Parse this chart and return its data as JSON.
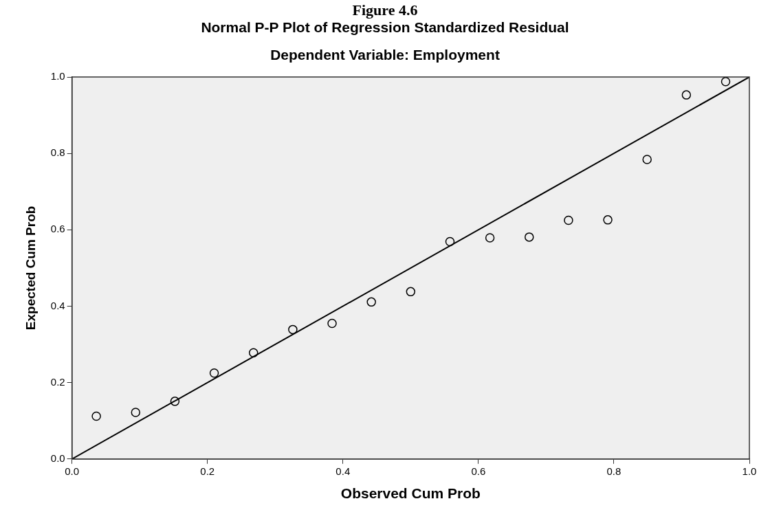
{
  "chart_data": {
    "type": "scatter",
    "title": "Normal P-P Plot of Regression Standardized Residual",
    "subtitle": "Dependent Variable: Employment",
    "annotations": [
      "Figure 4.6"
    ],
    "xlabel": "Observed Cum Prob",
    "ylabel": "Expected Cum Prob",
    "series": [
      {
        "marker": "circle",
        "color": "#000000",
        "x": [
          0.036,
          0.094,
          0.152,
          0.21,
          0.268,
          0.326,
          0.384,
          0.442,
          0.5,
          0.558,
          0.617,
          0.675,
          0.733,
          0.791,
          0.849,
          0.907,
          0.965
        ],
        "values": [
          0.112,
          0.122,
          0.151,
          0.225,
          0.278,
          0.339,
          0.355,
          0.411,
          0.438,
          0.569,
          0.579,
          0.581,
          0.625,
          0.626,
          0.784,
          0.953,
          0.988
        ]
      },
      {
        "type": "line",
        "marker": "none",
        "line_style": "solid",
        "color": "#000000",
        "x": [
          0,
          1
        ],
        "values": [
          0,
          1
        ]
      }
    ],
    "xlim": [
      0,
      1
    ],
    "ylim": [
      0,
      1
    ],
    "xticks": [
      {
        "value": 0,
        "label": "0.0"
      },
      {
        "value": 0.2,
        "label": "0.2"
      },
      {
        "value": 0.4,
        "label": "0.4"
      },
      {
        "value": 0.6,
        "label": "0.6"
      },
      {
        "value": 0.8,
        "label": "0.8"
      },
      {
        "value": 1,
        "label": "1.0"
      }
    ],
    "yticks": [
      {
        "value": 0,
        "label": "0.0"
      },
      {
        "value": 0.2,
        "label": "0.2"
      },
      {
        "value": 0.4,
        "label": "0.4"
      },
      {
        "value": 0.6,
        "label": "0.6"
      },
      {
        "value": 0.8,
        "label": "0.8"
      },
      {
        "value": 1,
        "label": "1.0"
      }
    ],
    "grid": false,
    "legend": false
  }
}
